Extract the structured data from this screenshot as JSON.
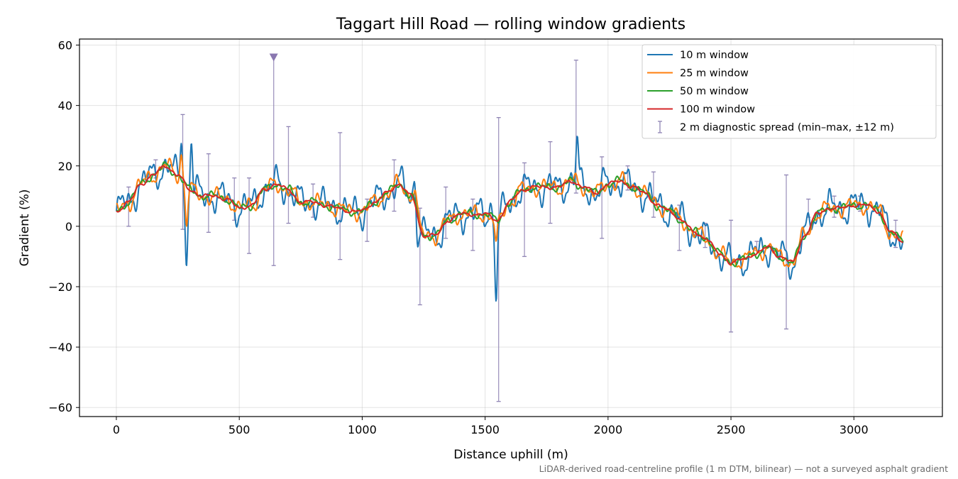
{
  "chart_data": {
    "type": "line",
    "title": "Taggart Hill Road — rolling window gradients",
    "xlabel": "Distance uphill (m)",
    "ylabel": "Gradient (%)",
    "xlim": [
      -150,
      3360
    ],
    "ylim": [
      -63,
      62
    ],
    "xticks": [
      0,
      500,
      1000,
      1500,
      2000,
      2500,
      3000
    ],
    "yticks": [
      60,
      40,
      20,
      0,
      -20,
      -40,
      -60
    ],
    "xtick_labels": [
      "0",
      "500",
      "1000",
      "1500",
      "2000",
      "2500",
      "3000"
    ],
    "ytick_labels": [
      "60",
      "40",
      "20",
      "0",
      "−20",
      "−40",
      "−60"
    ],
    "grid": true,
    "legend_position": "top-right",
    "footnote": "LiDAR-derived road-centreline profile (1 m DTM, bilinear) — not a surveyed asphalt gradient",
    "base_profile": {
      "x": [
        0,
        50,
        100,
        150,
        200,
        250,
        300,
        350,
        400,
        450,
        500,
        550,
        600,
        650,
        700,
        750,
        800,
        850,
        900,
        950,
        1000,
        1050,
        1100,
        1150,
        1200,
        1250,
        1300,
        1350,
        1400,
        1450,
        1500,
        1550,
        1600,
        1650,
        1700,
        1750,
        1800,
        1850,
        1900,
        1950,
        2000,
        2050,
        2100,
        2150,
        2200,
        2250,
        2300,
        2350,
        2400,
        2450,
        2500,
        2550,
        2600,
        2650,
        2700,
        2750,
        2800,
        2850,
        2900,
        2950,
        3000,
        3050,
        3100,
        3150,
        3200
      ],
      "y": [
        5,
        8,
        14,
        17,
        20,
        17,
        12,
        10,
        10,
        9,
        6,
        7,
        12,
        14,
        12,
        8,
        8,
        7,
        6,
        5,
        5,
        8,
        11,
        14,
        10,
        -3,
        -3,
        2,
        4,
        4,
        4,
        2,
        8,
        12,
        13,
        13,
        13,
        15,
        13,
        11,
        14,
        15,
        13,
        11,
        7,
        5,
        2,
        -2,
        -4,
        -9,
        -12,
        -11,
        -9,
        -7,
        -10,
        -12,
        -3,
        4,
        6,
        6,
        7,
        7,
        5,
        -2,
        -5
      ]
    },
    "series": [
      {
        "name": "10 m window",
        "color": "#1f77b4",
        "noise": 7.0,
        "spikes": [
          [
            265,
            14
          ],
          [
            285,
            -27
          ],
          [
            305,
            17
          ],
          [
            1215,
            11
          ],
          [
            1225,
            -8
          ],
          [
            1545,
            -25
          ],
          [
            1875,
            14
          ],
          [
            1520,
            6
          ]
        ]
      },
      {
        "name": "25 m window",
        "color": "#ff7f0e",
        "noise": 3.6,
        "spikes": [
          [
            265,
            8
          ],
          [
            285,
            -12
          ],
          [
            1215,
            6
          ],
          [
            1545,
            -10
          ]
        ]
      },
      {
        "name": "50 m window",
        "color": "#2ca02c",
        "noise": 1.8,
        "spikes": []
      },
      {
        "name": "100 m window",
        "color": "#d62728",
        "noise": 0.8,
        "spikes": []
      }
    ],
    "spread": {
      "name": "2 m diagnostic spread (min–max, ±12 m)",
      "color": "#8f84b4",
      "bars": [
        {
          "x": 50,
          "min": 0,
          "max": 13
        },
        {
          "x": 160,
          "min": 16,
          "max": 22
        },
        {
          "x": 270,
          "min": -1,
          "max": 37
        },
        {
          "x": 375,
          "min": -2,
          "max": 24
        },
        {
          "x": 480,
          "min": 2,
          "max": 16
        },
        {
          "x": 540,
          "min": -9,
          "max": 16
        },
        {
          "x": 640,
          "min": -13,
          "max": 56
        },
        {
          "x": 700,
          "min": 1,
          "max": 33
        },
        {
          "x": 800,
          "min": 3,
          "max": 14
        },
        {
          "x": 910,
          "min": -11,
          "max": 31
        },
        {
          "x": 1020,
          "min": -5,
          "max": 9
        },
        {
          "x": 1130,
          "min": 5,
          "max": 22
        },
        {
          "x": 1235,
          "min": -26,
          "max": 6
        },
        {
          "x": 1340,
          "min": -4,
          "max": 13
        },
        {
          "x": 1450,
          "min": -8,
          "max": 9
        },
        {
          "x": 1555,
          "min": -58,
          "max": 36
        },
        {
          "x": 1660,
          "min": -10,
          "max": 21
        },
        {
          "x": 1765,
          "min": 1,
          "max": 28
        },
        {
          "x": 1870,
          "min": 11,
          "max": 55
        },
        {
          "x": 1975,
          "min": -4,
          "max": 23
        },
        {
          "x": 2080,
          "min": 12,
          "max": 20
        },
        {
          "x": 2185,
          "min": 3,
          "max": 18
        },
        {
          "x": 2290,
          "min": -8,
          "max": 7
        },
        {
          "x": 2395,
          "min": -7,
          "max": 1
        },
        {
          "x": 2500,
          "min": -35,
          "max": 2
        },
        {
          "x": 2605,
          "min": -8,
          "max": -5
        },
        {
          "x": 2725,
          "min": -34,
          "max": 17
        },
        {
          "x": 2815,
          "min": 3,
          "max": 9
        },
        {
          "x": 2920,
          "min": 3,
          "max": 10
        },
        {
          "x": 3025,
          "min": 5,
          "max": 10
        },
        {
          "x": 3170,
          "min": -7,
          "max": 2
        }
      ],
      "offscale_marker": {
        "x": 640,
        "y": 56
      }
    }
  }
}
